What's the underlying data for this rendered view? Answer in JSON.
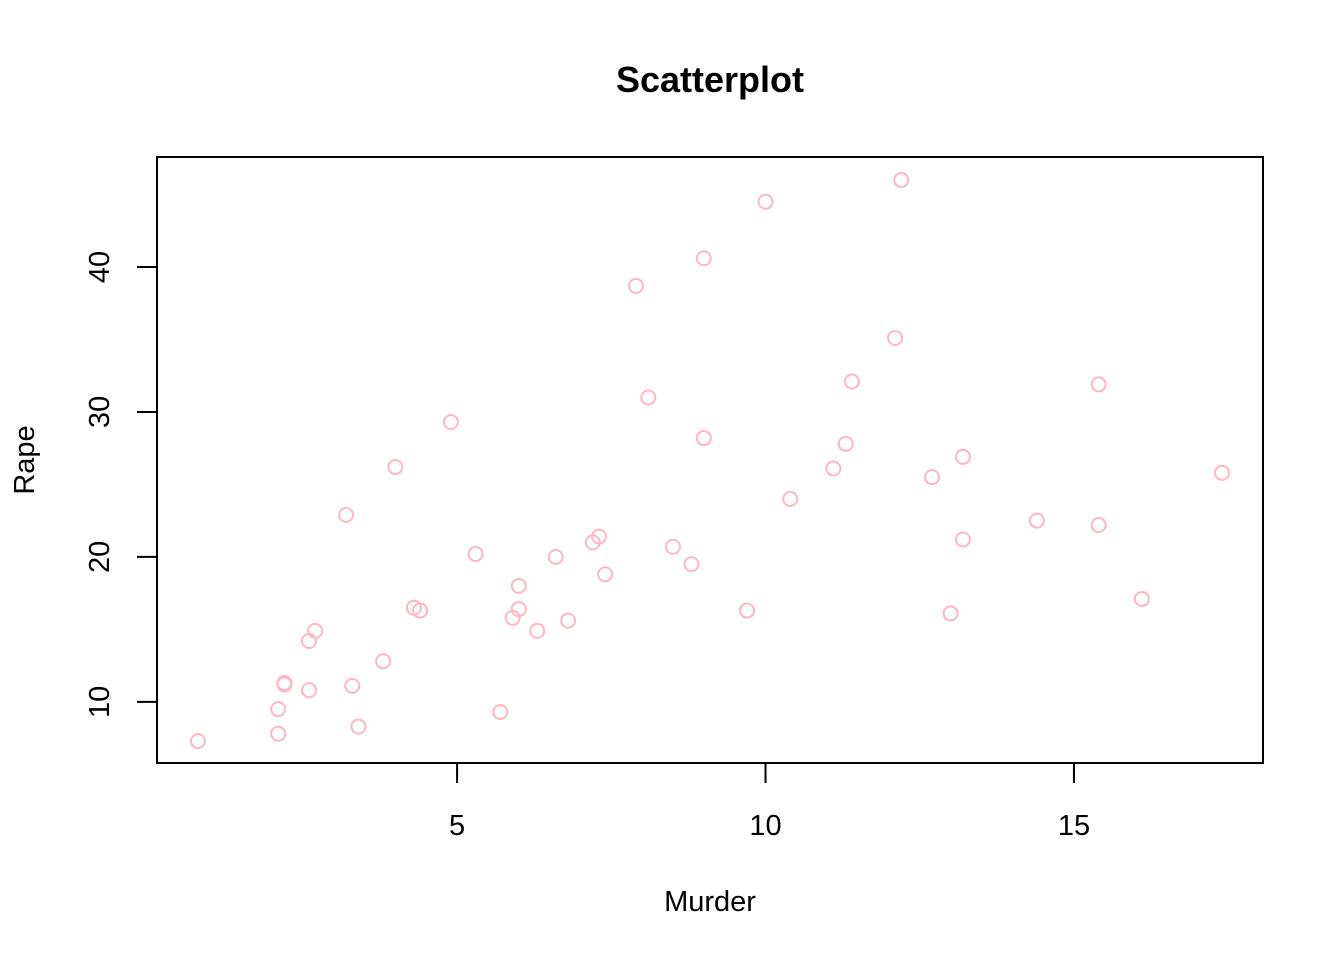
{
  "chart_data": {
    "type": "scatter",
    "title": "Scatterplot",
    "xlabel": "Murder",
    "ylabel": "Rape",
    "xlim": [
      0.8,
      17.4
    ],
    "ylim": [
      7.3,
      46.0
    ],
    "xticks": [
      5,
      10,
      15
    ],
    "yticks": [
      10,
      20,
      30,
      40
    ],
    "xtick_labels": [
      "5",
      "10",
      "15"
    ],
    "ytick_labels": [
      "10",
      "20",
      "30",
      "40"
    ],
    "grid": false,
    "legend": "none",
    "point_color": "#FFB6C1",
    "series": [
      {
        "x": [
          0.8,
          2.1,
          2.1,
          2.2,
          2.2,
          2.6,
          2.6,
          2.7,
          3.2,
          3.3,
          3.4,
          3.8,
          4.0,
          4.3,
          4.4,
          4.9,
          5.3,
          5.7,
          5.9,
          6.0,
          6.0,
          6.3,
          6.6,
          6.8,
          7.2,
          7.3,
          7.4,
          7.9,
          8.1,
          8.5,
          8.8,
          9.0,
          9.0,
          9.7,
          10.0,
          10.4,
          11.1,
          11.3,
          11.4,
          12.1,
          12.2,
          12.7,
          13.0,
          13.2,
          13.2,
          14.4,
          15.4,
          15.4,
          16.1,
          17.4
        ],
        "y": [
          7.3,
          7.8,
          9.5,
          11.2,
          11.3,
          10.8,
          14.2,
          14.9,
          22.9,
          11.1,
          8.3,
          12.8,
          26.2,
          16.5,
          16.3,
          29.3,
          20.2,
          9.3,
          15.8,
          16.4,
          18.0,
          14.9,
          20.0,
          15.6,
          21.0,
          21.4,
          18.8,
          38.7,
          31.0,
          20.7,
          19.5,
          28.2,
          40.6,
          16.3,
          44.5,
          24.0,
          26.1,
          27.8,
          32.1,
          35.1,
          46.0,
          25.5,
          16.1,
          21.2,
          26.9,
          22.5,
          22.2,
          31.9,
          17.1,
          25.8
        ]
      }
    ]
  }
}
